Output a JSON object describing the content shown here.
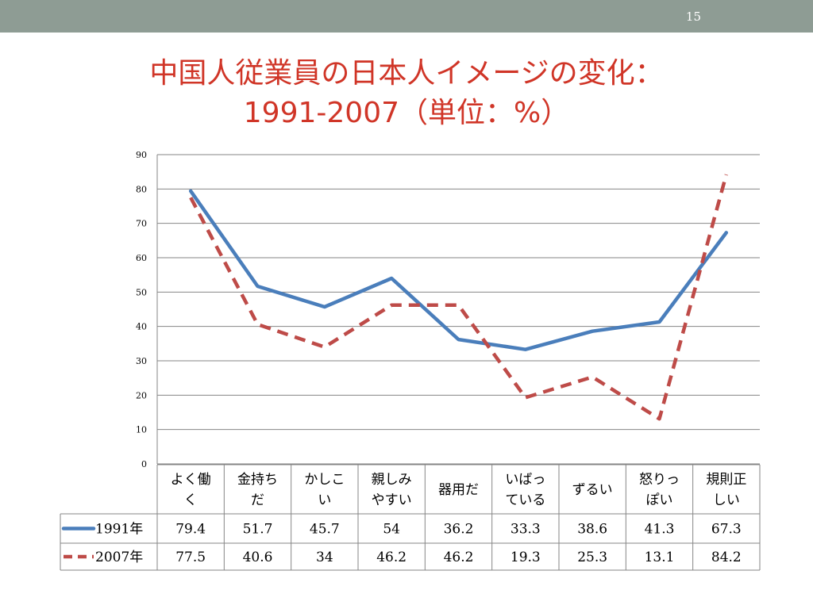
{
  "slide": {
    "page_number": "15",
    "title_line1": "中国人従業員の日本人イメージの変化：",
    "title_line2": "1991-2007（単位：%）"
  },
  "colors": {
    "topbar": "#8e9c94",
    "title": "#d03527",
    "series_1991": "#4a7ebb",
    "series_2007": "#be4b48",
    "grid": "#868686"
  },
  "chart_data": {
    "type": "line",
    "categories": [
      [
        "よく働",
        "く"
      ],
      [
        "金持ち",
        "だ"
      ],
      [
        "かしこ",
        "い"
      ],
      [
        "親しみ",
        "やすい"
      ],
      [
        "器用だ"
      ],
      [
        "いばっ",
        "ている"
      ],
      [
        "ずるい"
      ],
      [
        "怒りっ",
        "ぽい"
      ],
      [
        "規則正",
        "しい"
      ]
    ],
    "series": [
      {
        "name": "1991年",
        "style": "solid",
        "values": [
          79.4,
          51.7,
          45.7,
          54,
          36.2,
          33.3,
          38.6,
          41.3,
          67.3
        ]
      },
      {
        "name": "2007年",
        "style": "dashed",
        "values": [
          77.5,
          40.6,
          34,
          46.2,
          46.2,
          19.3,
          25.3,
          13.1,
          84.2
        ]
      }
    ],
    "ylim": [
      0,
      90
    ],
    "yticks": [
      0,
      10,
      20,
      30,
      40,
      50,
      60,
      70,
      80,
      90
    ],
    "grid": true,
    "data_table": true
  }
}
